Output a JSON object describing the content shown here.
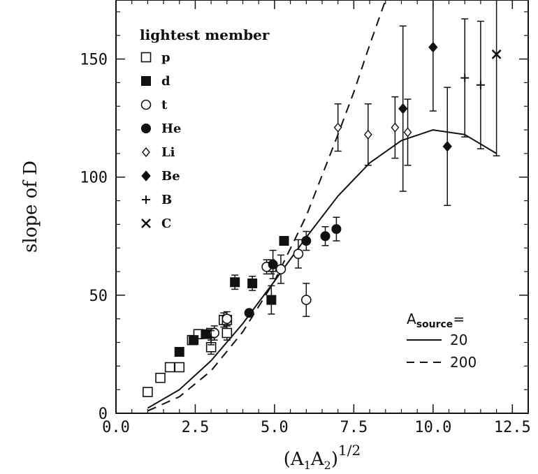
{
  "chart_data": {
    "type": "scatter",
    "xlabel": {
      "main": "(A",
      "sub1": "1",
      "mid": "A",
      "sub2": "2",
      "end": ")",
      "sup": "1/2"
    },
    "ylabel": "slope of D",
    "xlim": [
      0,
      13
    ],
    "ylim": [
      0,
      175
    ],
    "xticks": [
      "0.0",
      "2.5",
      "5.0",
      "7.5",
      "10.0",
      "12.5"
    ],
    "yticks": [
      "0",
      "50",
      "100",
      "150"
    ],
    "legend_placement": "top-left",
    "legend_title": "lightest member",
    "series": [
      {
        "name": "p",
        "marker": "open-square",
        "points": [
          [
            1.0,
            9,
            null
          ],
          [
            1.4,
            15,
            null
          ],
          [
            1.7,
            19.5,
            null
          ],
          [
            2.0,
            19.5,
            null
          ],
          [
            2.4,
            31,
            null
          ],
          [
            2.6,
            33.5,
            null
          ],
          [
            3.0,
            28,
            3
          ],
          [
            3.0,
            34,
            null
          ],
          [
            3.4,
            39.5,
            3
          ],
          [
            3.5,
            34,
            3
          ],
          [
            3.5,
            39.5,
            null
          ],
          [
            4.9,
            62,
            3
          ]
        ]
      },
      {
        "name": "d",
        "marker": "filled-square",
        "points": [
          [
            2.0,
            26,
            null
          ],
          [
            2.45,
            31,
            null
          ],
          [
            2.83,
            33.5,
            null
          ],
          [
            3.75,
            55.5,
            3
          ],
          [
            4.3,
            55,
            3
          ],
          [
            4.9,
            48,
            6
          ],
          [
            5.3,
            73,
            null
          ]
        ]
      },
      {
        "name": "t",
        "marker": "open-circle",
        "points": [
          [
            3.1,
            34,
            3
          ],
          [
            3.5,
            40,
            3
          ],
          [
            4.75,
            62,
            3
          ],
          [
            5.2,
            61,
            6
          ],
          [
            5.75,
            67.5,
            6
          ],
          [
            6.0,
            48,
            7
          ]
        ]
      },
      {
        "name": "He",
        "marker": "filled-circle",
        "points": [
          [
            4.2,
            42.5,
            null
          ],
          [
            4.95,
            63,
            6
          ],
          [
            6.0,
            73,
            4
          ],
          [
            6.6,
            75,
            4
          ],
          [
            6.95,
            78,
            5
          ]
        ]
      },
      {
        "name": "Li",
        "marker": "open-diamond",
        "points": [
          [
            7.0,
            121,
            10
          ],
          [
            7.95,
            118,
            13
          ],
          [
            8.8,
            121,
            13
          ],
          [
            9.2,
            119,
            14
          ]
        ]
      },
      {
        "name": "Be",
        "marker": "filled-diamond",
        "points": [
          [
            9.05,
            129,
            35
          ],
          [
            10.0,
            155,
            27
          ],
          [
            10.45,
            113,
            25
          ]
        ]
      },
      {
        "name": "B",
        "marker": "plus",
        "points": [
          [
            3.0,
            32,
            3
          ],
          [
            11.0,
            142,
            25
          ],
          [
            11.5,
            139,
            27
          ]
        ]
      },
      {
        "name": "C",
        "marker": "cross",
        "points": [
          [
            12.0,
            152,
            43
          ]
        ]
      }
    ],
    "curves": [
      {
        "name": "20",
        "style": "solid",
        "points": [
          [
            1.0,
            2.2
          ],
          [
            2.0,
            10
          ],
          [
            3.0,
            22.3
          ],
          [
            4.0,
            38
          ],
          [
            5.0,
            56
          ],
          [
            6.0,
            74.5
          ],
          [
            7.0,
            92
          ],
          [
            8.0,
            106
          ],
          [
            9.0,
            115.5
          ],
          [
            10.0,
            120
          ],
          [
            11.0,
            118
          ],
          [
            12.0,
            110
          ]
        ]
      },
      {
        "name": "200",
        "style": "dashed",
        "points": [
          [
            1.0,
            1
          ],
          [
            2.0,
            7
          ],
          [
            3.0,
            18
          ],
          [
            4.0,
            34.5
          ],
          [
            5.0,
            56
          ],
          [
            6.0,
            83.5
          ],
          [
            7.0,
            118
          ],
          [
            7.5,
            136
          ],
          [
            8.0,
            156
          ],
          [
            8.5,
            175
          ]
        ]
      }
    ],
    "legend2": {
      "title_main": "A",
      "title_sub": "source",
      "title_end": "=",
      "entries": [
        "20",
        "200"
      ]
    }
  }
}
